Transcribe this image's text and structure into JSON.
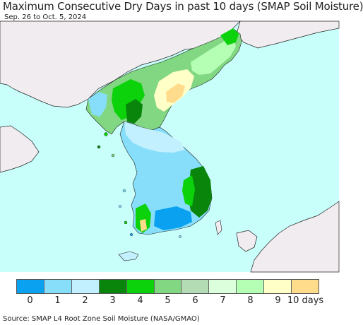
{
  "title": "Maximum Consecutive Dry Days in past 10 days (SMAP Soil Moisture)",
  "subtitle": "Sep. 26 to Oct. 5, 2024",
  "source": "Source: SMAP L4 Root Zone Soil Moisture (NASA/GMAO)",
  "colors": {
    "sea": "#c8fffb",
    "foreign_land": "#f0ecf0"
  },
  "legend": {
    "labels": [
      "0",
      "1",
      "2",
      "3",
      "4",
      "5",
      "6",
      "7",
      "8",
      "9"
    ],
    "last_label": "10 days",
    "colors": [
      "#0aa2f0",
      "#87defa",
      "#c3f0ff",
      "#08850a",
      "#0cd20c",
      "#82d782",
      "#b4dcb4",
      "#dcffdc",
      "#b4ffb4",
      "#ffffc8",
      "#ffdc8c"
    ]
  }
}
